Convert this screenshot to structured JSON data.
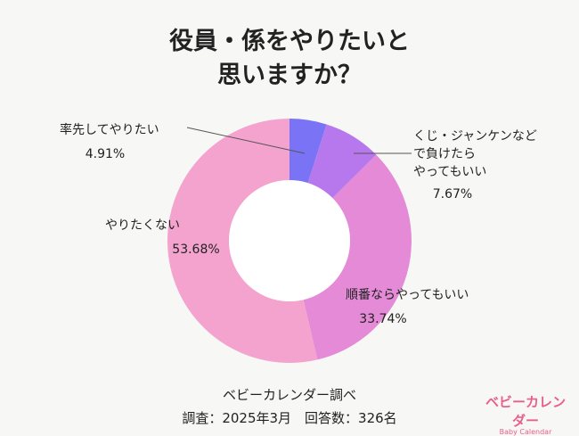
{
  "title_lines": [
    "役員・係をやりたいと",
    "思いますか？"
  ],
  "chart_data": {
    "type": "pie",
    "donut": true,
    "unit": "%",
    "slices": [
      {
        "label": "率先してやりたい",
        "value": 4.91,
        "display": "4.91%",
        "color": "#7b73f5"
      },
      {
        "label": "くじ・ジャンケンなどで負けたらやってもいい",
        "label_lines": [
          "くじ・ジャンケンなど",
          "で負けたら",
          "やってもいい"
        ],
        "value": 7.67,
        "display": "7.67%",
        "color": "#b678ec"
      },
      {
        "label": "順番ならやってもいい",
        "value": 33.74,
        "display": "33.74%",
        "color": "#e48ad7"
      },
      {
        "label": "やりたくない",
        "value": 53.68,
        "display": "53.68%",
        "color": "#f4a3cf"
      }
    ]
  },
  "footer": {
    "source": "ベビーカレンダー調べ",
    "survey": "調査：2025年3月　回答数：326名"
  },
  "brand": {
    "name": "ベビーカレンダー",
    "sub": "Baby Calendar"
  }
}
